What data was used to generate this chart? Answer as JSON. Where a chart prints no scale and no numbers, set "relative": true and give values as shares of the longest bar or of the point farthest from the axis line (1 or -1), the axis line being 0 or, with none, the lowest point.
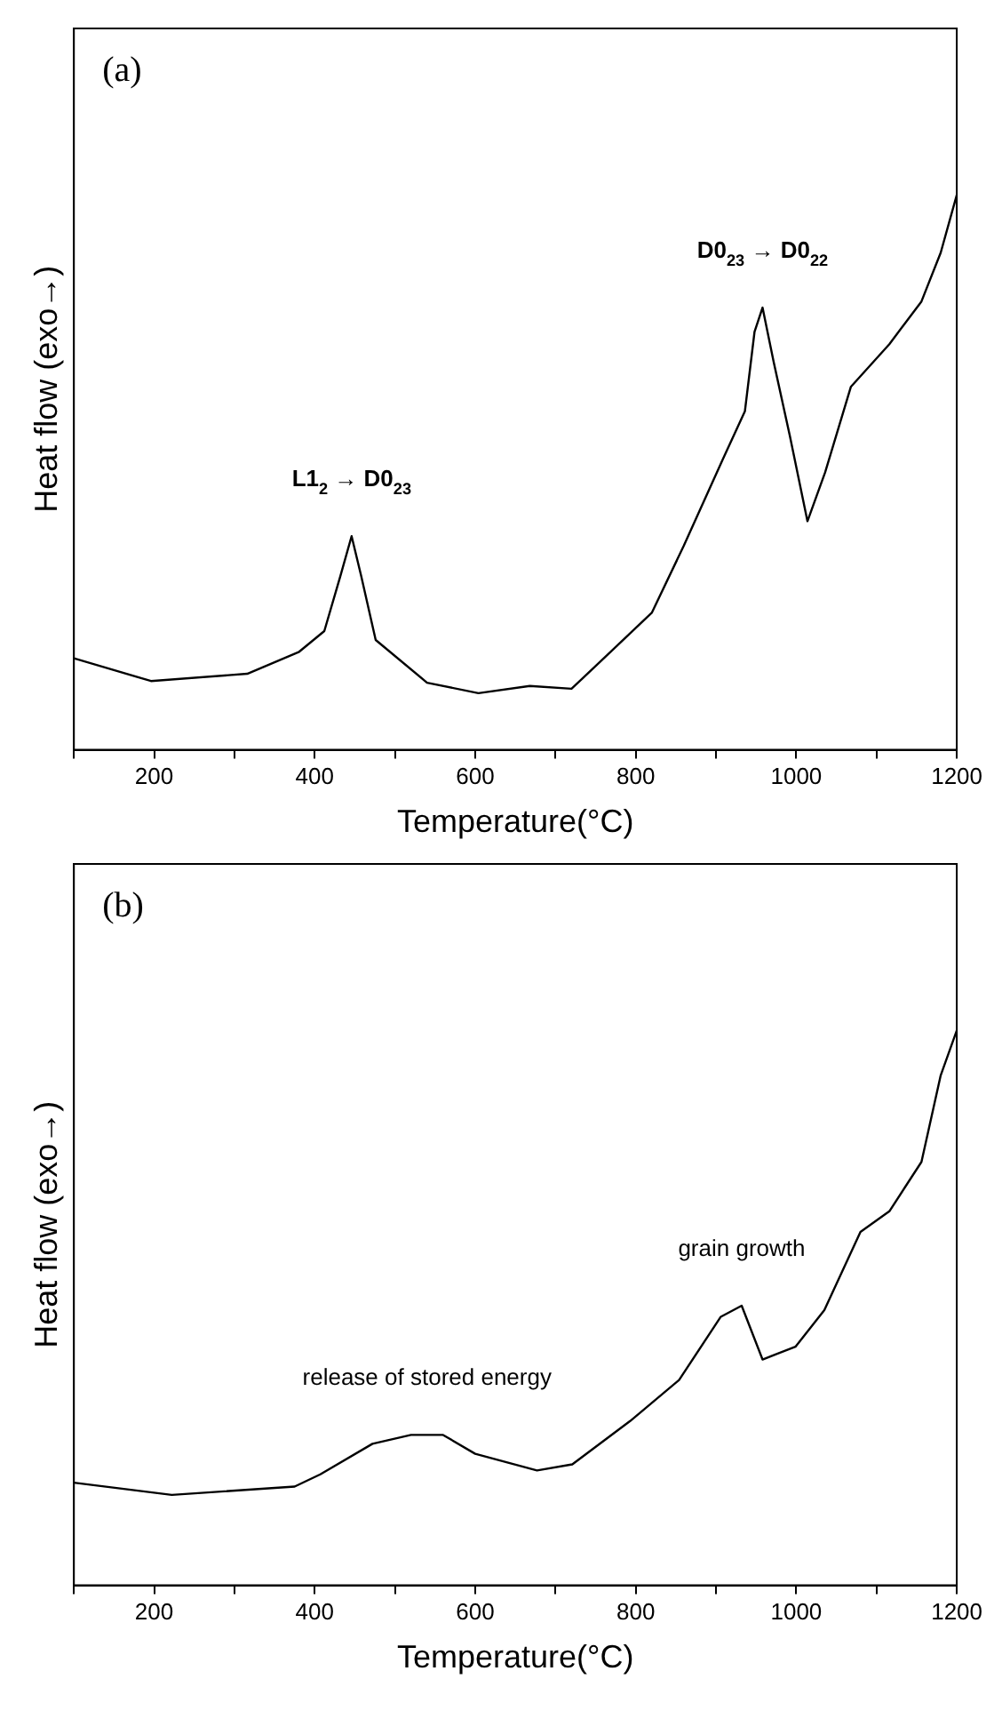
{
  "chart_data": [
    {
      "type": "line",
      "relative": true,
      "xlabel": "Temperature(°C)",
      "ylabel": "Heat flow (exo→)",
      "xlim": [
        100,
        1200
      ],
      "xticks": [
        {
          "value": 100,
          "label": null
        },
        200,
        {
          "value": 300,
          "label": null
        },
        400,
        {
          "value": 500,
          "label": null
        },
        600,
        {
          "value": 700,
          "label": null
        },
        800,
        {
          "value": 900,
          "label": null
        },
        1000,
        {
          "value": 1100,
          "label": null
        },
        1200
      ],
      "grid": false,
      "legend": false,
      "marker": "none",
      "line_style": "solid",
      "annotations": [
        "(a)",
        {
          "text": "L1$_{2}$ → D0$_{23}$",
          "x": 446,
          "y": 0.385
        },
        {
          "text": "D0$_{23}$ → D0$_{22}$",
          "x": 958,
          "y": 0.797
        }
      ],
      "series": [
        {
          "color": "#000000",
          "x": [
            100,
            196,
            316,
            380,
            412,
            432,
            446,
            458,
            476,
            540,
            604,
            668,
            720,
            764,
            820,
            860,
            908,
            936,
            948,
            958,
            972,
            992,
            1014,
            1036,
            1068,
            1116,
            1156,
            1180,
            1200
          ],
          "values": [
            0.165,
            0.124,
            0.137,
            0.176,
            0.214,
            0.313,
            0.385,
            0.313,
            0.198,
            0.121,
            0.102,
            0.115,
            0.11,
            0.17,
            0.247,
            0.368,
            0.522,
            0.61,
            0.753,
            0.797,
            0.698,
            0.566,
            0.412,
            0.5,
            0.654,
            0.731,
            0.808,
            0.896,
            1.0
          ]
        }
      ]
    },
    {
      "type": "line",
      "relative": true,
      "xlabel": "Temperature(°C)",
      "ylabel": "Heat flow (exo→)",
      "xlim": [
        100,
        1200
      ],
      "xticks": [
        {
          "value": 100,
          "label": null
        },
        200,
        {
          "value": 300,
          "label": null
        },
        400,
        {
          "value": 500,
          "label": null
        },
        600,
        {
          "value": 700,
          "label": null
        },
        800,
        {
          "value": 900,
          "label": null
        },
        1000,
        {
          "value": 1100,
          "label": null
        },
        1200
      ],
      "grid": false,
      "legend": false,
      "marker": "none",
      "line_style": "solid",
      "annotations": [
        "(b)",
        {
          "text": "release of stored energy",
          "x": 540,
          "y": 0.271
        },
        {
          "text": "grain growth",
          "x": 932,
          "y": 0.504
        }
      ],
      "series": [
        {
          "color": "#000000",
          "x": [
            100,
            222,
            375,
            407,
            472,
            520,
            560,
            600,
            677,
            721,
            793,
            854,
            906,
            932,
            958,
            999,
            1035,
            1080,
            1116,
            1156,
            1180,
            1200
          ],
          "values": [
            0.185,
            0.163,
            0.178,
            0.2,
            0.255,
            0.271,
            0.271,
            0.237,
            0.207,
            0.218,
            0.296,
            0.37,
            0.484,
            0.504,
            0.407,
            0.43,
            0.496,
            0.637,
            0.674,
            0.763,
            0.919,
            1.0
          ]
        }
      ]
    }
  ]
}
